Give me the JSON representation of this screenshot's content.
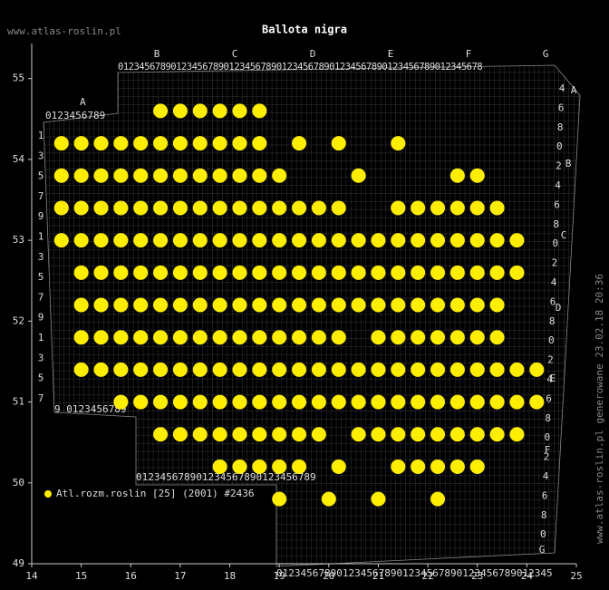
{
  "chart_data": {
    "type": "scatter",
    "title": "Ballota nigra",
    "site": "www.atlas-roslin.pl",
    "side_note": "www.atlas-roslin.pl generowane 23.02.18 20:36",
    "legend": "Atl.rozm.roslin [25] (2001) #2436",
    "color": "#ffee00",
    "xlim": [
      14,
      25
    ],
    "ylim": [
      49,
      55.4
    ],
    "xticks": [
      14,
      15,
      16,
      17,
      18,
      19,
      20,
      21,
      22,
      23,
      24,
      25
    ],
    "yticks": [
      49,
      50,
      51,
      52,
      53,
      54,
      55
    ],
    "grid_labels": {
      "top_letters": [
        "B",
        "C",
        "D",
        "E",
        "F",
        "G"
      ],
      "top_digits": "012345678901234567890123456789012345678901234567890123456789012345678",
      "left_letter": "A",
      "left_digits": "0123456789",
      "left_rows": [
        "1",
        "3",
        "5",
        "7",
        "9",
        "1",
        "3",
        "5",
        "7",
        "9",
        "1",
        "3",
        "5",
        "7"
      ],
      "left_bottom": "9 0123456789",
      "mid_bottom": "012345678901234567890123456789",
      "bottom_digits": "0123456789012345678901234567890123456789012345",
      "right_letters": [
        "A",
        "B",
        "C",
        "D",
        "E",
        "F",
        "G"
      ],
      "right_rows": [
        "4",
        "6",
        "8",
        "0",
        "2",
        "4",
        "6",
        "8",
        "0",
        "2",
        "4",
        "6",
        "8",
        "0",
        "2",
        "4",
        "6",
        "8",
        "0",
        "2",
        "4",
        "6",
        "8",
        "0"
      ]
    },
    "rows": [
      {
        "lat": 54.6,
        "lon": [
          16.6,
          17.0,
          17.4,
          17.8,
          18.2,
          18.6
        ]
      },
      {
        "lat": 54.2,
        "lon": [
          14.6,
          15.0,
          15.4,
          15.8,
          16.2,
          16.6,
          17.0,
          17.4,
          17.8,
          18.2,
          18.6,
          19.4,
          20.2,
          21.4
        ]
      },
      {
        "lat": 53.8,
        "lon": [
          14.6,
          15.0,
          15.4,
          15.8,
          16.2,
          16.6,
          17.0,
          17.4,
          17.8,
          18.2,
          18.6,
          19.0,
          20.6,
          22.6,
          23.0
        ]
      },
      {
        "lat": 53.4,
        "lon": [
          14.6,
          15.0,
          15.4,
          15.8,
          16.2,
          16.6,
          17.0,
          17.4,
          17.8,
          18.2,
          18.6,
          19.0,
          19.4,
          19.8,
          20.2,
          21.4,
          21.8,
          22.2,
          22.6,
          23.0,
          23.4
        ]
      },
      {
        "lat": 53.0,
        "lon": [
          14.6,
          15.0,
          15.4,
          15.8,
          16.2,
          16.6,
          17.0,
          17.4,
          17.8,
          18.2,
          18.6,
          19.0,
          19.4,
          19.8,
          20.2,
          20.6,
          21.0,
          21.4,
          21.8,
          22.2,
          22.6,
          23.0,
          23.4,
          23.8
        ]
      },
      {
        "lat": 52.6,
        "lon": [
          15.0,
          15.4,
          15.8,
          16.2,
          16.6,
          17.0,
          17.4,
          17.8,
          18.2,
          18.6,
          19.0,
          19.4,
          19.8,
          20.2,
          20.6,
          21.0,
          21.4,
          21.8,
          22.2,
          22.6,
          23.0,
          23.4,
          23.8
        ]
      },
      {
        "lat": 52.2,
        "lon": [
          15.0,
          15.4,
          15.8,
          16.2,
          16.6,
          17.0,
          17.4,
          17.8,
          18.2,
          18.6,
          19.0,
          19.4,
          19.8,
          20.2,
          20.6,
          21.0,
          21.4,
          21.8,
          22.2,
          22.6,
          23.0,
          23.4
        ]
      },
      {
        "lat": 51.8,
        "lon": [
          15.0,
          15.4,
          15.8,
          16.2,
          16.6,
          17.0,
          17.4,
          17.8,
          18.2,
          18.6,
          19.0,
          19.4,
          19.8,
          20.2,
          21.0,
          21.4,
          21.8,
          22.2,
          22.6,
          23.0,
          23.4
        ]
      },
      {
        "lat": 51.4,
        "lon": [
          15.0,
          15.4,
          15.8,
          16.2,
          16.6,
          17.0,
          17.4,
          17.8,
          18.2,
          18.6,
          19.0,
          19.4,
          19.8,
          20.2,
          20.6,
          21.0,
          21.4,
          21.8,
          22.2,
          22.6,
          23.0,
          23.4,
          23.8,
          24.2
        ]
      },
      {
        "lat": 51.0,
        "lon": [
          15.8,
          16.2,
          16.6,
          17.0,
          17.4,
          17.8,
          18.2,
          18.6,
          19.0,
          19.4,
          19.8,
          20.2,
          20.6,
          21.0,
          21.4,
          21.8,
          22.2,
          22.6,
          23.0,
          23.4,
          23.8,
          24.2
        ]
      },
      {
        "lat": 50.6,
        "lon": [
          16.6,
          17.0,
          17.4,
          17.8,
          18.2,
          18.6,
          19.0,
          19.4,
          19.8,
          20.6,
          21.0,
          21.4,
          21.8,
          22.2,
          22.6,
          23.0,
          23.4,
          23.8
        ]
      },
      {
        "lat": 50.2,
        "lon": [
          17.8,
          18.2,
          18.6,
          19.0,
          19.4,
          20.2,
          21.4,
          21.8,
          22.2,
          22.6,
          23.0
        ]
      },
      {
        "lat": 49.8,
        "lon": [
          19.0,
          20.0,
          21.0,
          22.2
        ]
      }
    ]
  }
}
